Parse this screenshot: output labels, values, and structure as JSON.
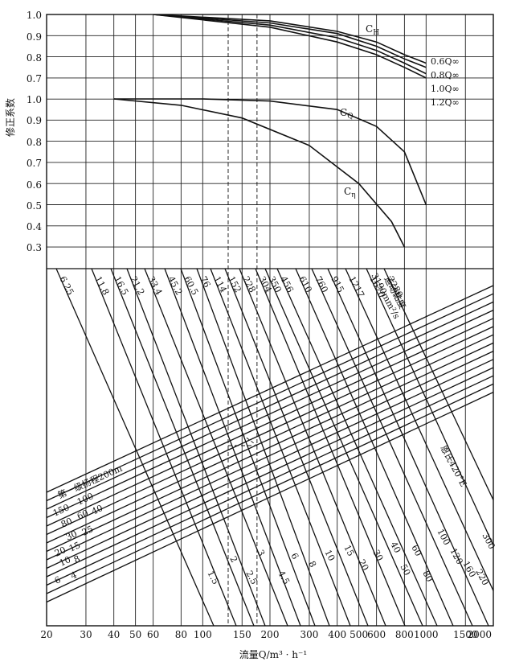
{
  "chart_data": {
    "type": "line",
    "x_axis": {
      "label": "流量Q/m³ · h⁻¹",
      "scale": "log",
      "range": [
        20,
        2000
      ],
      "ticks": [
        20,
        30,
        40,
        50,
        60,
        80,
        100,
        150,
        200,
        300,
        400,
        500,
        600,
        800,
        1000,
        1500,
        2000
      ],
      "tick_labels": [
        "20",
        "30",
        "40",
        "50",
        "60",
        "80",
        "100",
        "150",
        "200",
        "300",
        "400",
        "500",
        "600",
        "800",
        "1000",
        "1500",
        "2000"
      ]
    },
    "y_axis": {
      "label": "修正系数",
      "upper_ticks": [
        "1.0",
        "0.9",
        "0.8",
        "0.7",
        "0.6"
      ],
      "lower_ticks": [
        "1.0",
        "0.9",
        "0.8",
        "0.7",
        "0.6",
        "0.5",
        "0.4",
        "0.3"
      ]
    },
    "grid": true,
    "correction_curves": {
      "CH": {
        "label": "C_H",
        "scale_max": 1.0,
        "scale_min": 0.6,
        "series": [
          {
            "name": "0.6Q∞",
            "points": [
              [
                60,
                1.0
              ],
              [
                200,
                0.97
              ],
              [
                400,
                0.92
              ],
              [
                600,
                0.87
              ],
              [
                800,
                0.81
              ],
              [
                1000,
                0.77
              ]
            ]
          },
          {
            "name": "0.8Q∞",
            "points": [
              [
                60,
                1.0
              ],
              [
                200,
                0.96
              ],
              [
                400,
                0.91
              ],
              [
                600,
                0.85
              ],
              [
                800,
                0.79
              ],
              [
                1000,
                0.75
              ]
            ]
          },
          {
            "name": "1.0Q∞",
            "points": [
              [
                60,
                1.0
              ],
              [
                200,
                0.95
              ],
              [
                400,
                0.89
              ],
              [
                600,
                0.83
              ],
              [
                800,
                0.77
              ],
              [
                1000,
                0.72
              ]
            ]
          },
          {
            "name": "1.2Q∞",
            "points": [
              [
                60,
                1.0
              ],
              [
                200,
                0.94
              ],
              [
                400,
                0.87
              ],
              [
                600,
                0.81
              ],
              [
                800,
                0.75
              ],
              [
                1000,
                0.7
              ]
            ]
          }
        ]
      },
      "CQ": {
        "label": "C_Q",
        "scale_max": 1.0,
        "scale_min": 0.3,
        "points": [
          [
            40,
            1.0
          ],
          [
            100,
            1.0
          ],
          [
            200,
            0.99
          ],
          [
            400,
            0.95
          ],
          [
            600,
            0.87
          ],
          [
            800,
            0.75
          ],
          [
            1000,
            0.5
          ]
        ]
      },
      "Ceta": {
        "label": "C_η",
        "scale_max": 1.0,
        "scale_min": 0.3,
        "points": [
          [
            40,
            1.0
          ],
          [
            80,
            0.97
          ],
          [
            150,
            0.91
          ],
          [
            300,
            0.78
          ],
          [
            500,
            0.6
          ],
          [
            700,
            0.42
          ],
          [
            800,
            0.3
          ]
        ]
      }
    },
    "viscosity_lines": {
      "title": "运动黏度",
      "unit_label": "3190mm²/s",
      "top_labels": [
        "6.25",
        "11.8",
        "16.5",
        "21.2",
        "33.4",
        "45.2",
        "60.5",
        "76",
        "114",
        "152",
        "228",
        "304",
        "350",
        "456",
        "610",
        "760",
        "915",
        "1217",
        "1670",
        "2280"
      ],
      "bottom_labels": [
        "1.5",
        "2",
        "2.5",
        "3",
        "4.5",
        "6",
        "8",
        "10",
        "15",
        "20",
        "30",
        "40",
        "50",
        "60",
        "80",
        "100",
        "120",
        "160",
        "220",
        "300"
      ],
      "degree_label": "恩氏420°E"
    },
    "head_lines": {
      "title": "第一级扬程200m",
      "labels": [
        "150",
        "100",
        "80",
        "60",
        "40",
        "30",
        "25",
        "20",
        "15",
        "10",
        "8",
        "6",
        "4"
      ]
    },
    "reference_lines_x": [
      130,
      175
    ]
  }
}
